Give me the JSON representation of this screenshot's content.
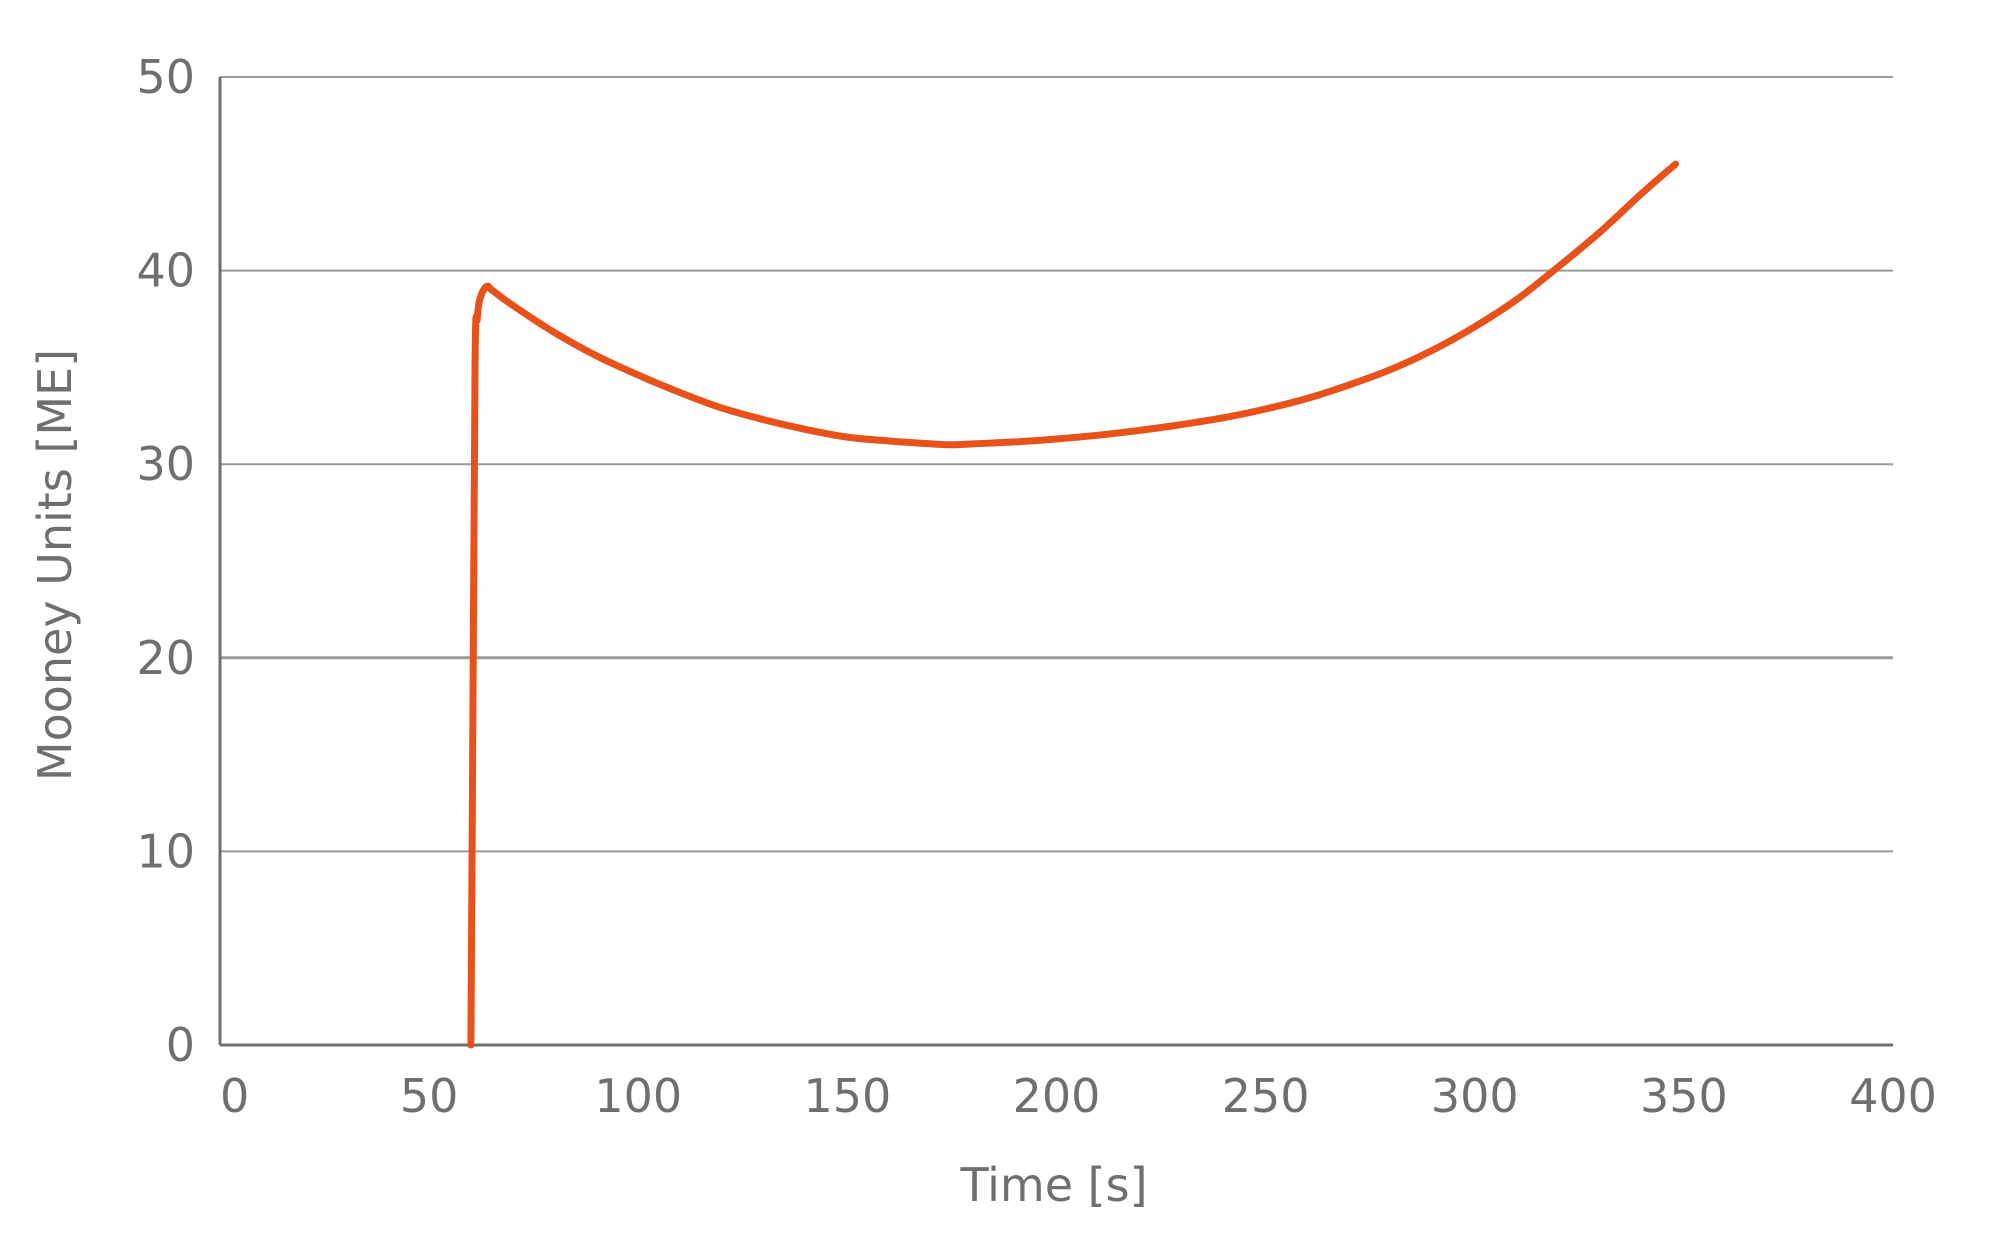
{
  "chart_data": {
    "type": "line",
    "title": "",
    "xlabel": "Time [s]",
    "ylabel": "Mooney Units [ME]",
    "xlim": [
      0,
      400
    ],
    "ylim": [
      0,
      50
    ],
    "x_ticks": [
      "0",
      "50",
      "100",
      "150",
      "200",
      "250",
      "300",
      "350",
      "400"
    ],
    "y_ticks": [
      "0",
      "10",
      "20",
      "30",
      "40",
      "50"
    ],
    "grid": "horizontal",
    "legend": "none",
    "colors": {
      "line": "#e8521a",
      "grid": "#9a9a9a",
      "axis": "#6f6f6f",
      "text": "#6f6f6f"
    },
    "series": [
      {
        "x": [
          60,
          60.5,
          61,
          61.5,
          62,
          63,
          64,
          65,
          70,
          80,
          90,
          100,
          110,
          120,
          130,
          140,
          150,
          160,
          170,
          175,
          180,
          190,
          200,
          210,
          220,
          230,
          240,
          250,
          260,
          270,
          280,
          290,
          300,
          310,
          320,
          330,
          340,
          348
        ],
        "y": [
          0,
          18,
          35.5,
          37.5,
          38.4,
          39.0,
          39.2,
          39.0,
          38.2,
          36.8,
          35.6,
          34.6,
          33.7,
          32.9,
          32.3,
          31.8,
          31.4,
          31.2,
          31.05,
          31.0,
          31.05,
          31.15,
          31.3,
          31.5,
          31.75,
          32.05,
          32.4,
          32.85,
          33.4,
          34.1,
          34.9,
          35.9,
          37.1,
          38.5,
          40.2,
          42.0,
          44.0,
          45.5
        ]
      }
    ]
  }
}
